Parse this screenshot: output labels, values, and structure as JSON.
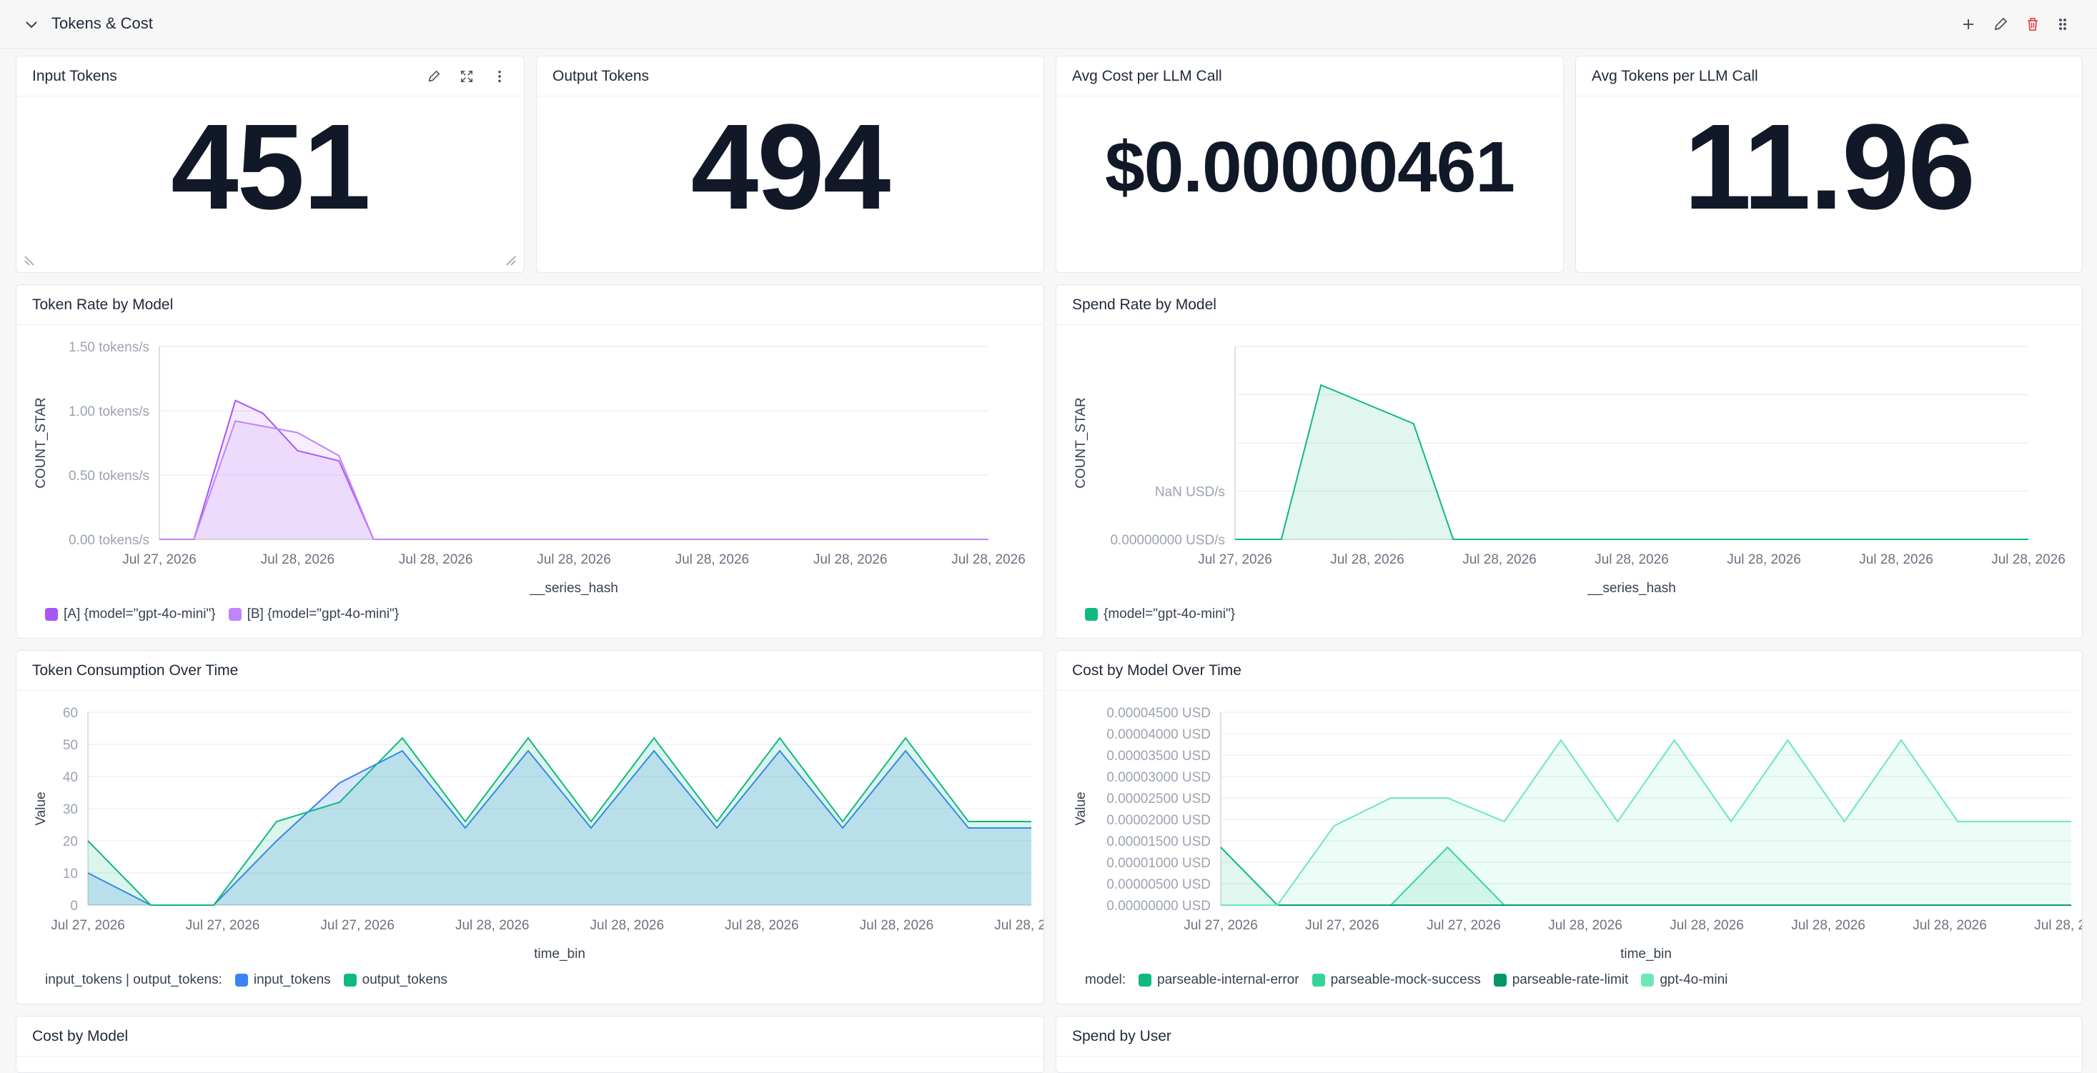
{
  "section": {
    "title": "Tokens & Cost"
  },
  "stats": [
    {
      "title": "Input Tokens",
      "value": "451"
    },
    {
      "title": "Output Tokens",
      "value": "494"
    },
    {
      "title": "Avg Cost per LLM Call",
      "value": "$0.00000461"
    },
    {
      "title": "Avg Tokens per LLM Call",
      "value": "11.96"
    }
  ],
  "colors": {
    "purple_a": "#a855f7",
    "purple_b": "#c084fc",
    "green": "#10b981",
    "blue": "#3b82f6",
    "delete": "#ef4444"
  },
  "icons": {
    "section": [
      "chevron-down-icon",
      "plus-icon",
      "pencil-icon",
      "trash-icon",
      "drag-handle-icon"
    ],
    "card": [
      "pencil-icon",
      "expand-icon",
      "more-vertical-icon"
    ]
  },
  "chart_data": [
    {
      "panel": "Token Rate by Model",
      "type": "area",
      "xlabel": "__series_hash",
      "ylabel": "COUNT_STAR",
      "x_ticks": [
        "Jul 27, 2026",
        "Jul 28, 2026",
        "Jul 28, 2026",
        "Jul 28, 2026",
        "Jul 28, 2026",
        "Jul 28, 2026",
        "Jul 28, 2026"
      ],
      "y_ticks": [
        "0.00 tokens/s",
        "0.50 tokens/s",
        "1.00 tokens/s",
        "1.50 tokens/s"
      ],
      "ylim": [
        0,
        1.5
      ],
      "x": [
        0,
        0.5,
        1.1,
        1.5,
        2.0,
        2.6,
        3.1,
        12
      ],
      "series": [
        {
          "name": "[A] {model=\"gpt-4o-mini\"}",
          "values": [
            0,
            0,
            1.08,
            0.98,
            0.69,
            0.61,
            0,
            0
          ]
        },
        {
          "name": "[B] {model=\"gpt-4o-mini\"}",
          "values": [
            0,
            0,
            0.92,
            0.88,
            0.83,
            0.65,
            0,
            0
          ]
        }
      ],
      "legend_position": "bottom-left"
    },
    {
      "panel": "Spend Rate by Model",
      "type": "area",
      "xlabel": "__series_hash",
      "ylabel": "COUNT_STAR",
      "x_ticks": [
        "Jul 27, 2026",
        "Jul 28, 2026",
        "Jul 28, 2026",
        "Jul 28, 2026",
        "Jul 28, 2026",
        "Jul 28, 2026",
        "Jul 28, 2026"
      ],
      "y_ticks": [
        "0.00000000 USD/s",
        "NaN USD/s"
      ],
      "ylim": [
        0,
        4
      ],
      "x": [
        0,
        0.7,
        1.3,
        2.7,
        3.3,
        12
      ],
      "series": [
        {
          "name": "{model=\"gpt-4o-mini\"}",
          "values": [
            0,
            0,
            3.2,
            2.4,
            0,
            0
          ]
        }
      ],
      "legend_position": "bottom-left"
    },
    {
      "panel": "Token Consumption Over Time",
      "type": "area",
      "xlabel": "time_bin",
      "ylabel": "Value",
      "legend_title": "input_tokens | output_tokens:",
      "x_ticks": [
        "Jul 27, 2026",
        "Jul 27, 2026",
        "Jul 27, 2026",
        "Jul 28, 2026",
        "Jul 28, 2026",
        "Jul 28, 2026",
        "Jul 28, 2026",
        "Jul 28, 2026"
      ],
      "y_ticks": [
        "0",
        "10",
        "20",
        "30",
        "40",
        "50",
        "60"
      ],
      "ylim": [
        0,
        60
      ],
      "x": [
        0,
        1,
        2,
        3,
        4,
        5,
        6,
        7,
        8,
        9,
        10,
        11,
        12,
        13,
        14,
        15
      ],
      "series": [
        {
          "name": "input_tokens",
          "values": [
            10,
            0,
            0,
            20,
            38,
            48,
            24,
            48,
            24,
            48,
            24,
            48,
            24,
            48,
            24,
            24
          ]
        },
        {
          "name": "output_tokens",
          "values": [
            20,
            0,
            0,
            26,
            32,
            52,
            26,
            52,
            26,
            52,
            26,
            52,
            26,
            52,
            26,
            26
          ]
        }
      ],
      "legend_position": "bottom-left"
    },
    {
      "panel": "Cost by Model Over Time",
      "type": "area",
      "xlabel": "time_bin",
      "ylabel": "Value",
      "legend_title": "model:",
      "x_ticks": [
        "Jul 27, 2026",
        "Jul 27, 2026",
        "Jul 27, 2026",
        "Jul 28, 2026",
        "Jul 28, 2026",
        "Jul 28, 2026",
        "Jul 28, 2026",
        "Jul 28, 2026"
      ],
      "y_ticks": [
        "0.00000000 USD",
        "0.00000500 USD",
        "0.00001000 USD",
        "0.00001500 USD",
        "0.00002000 USD",
        "0.00002500 USD",
        "0.00003000 USD",
        "0.00003500 USD",
        "0.00004000 USD",
        "0.00004500 USD"
      ],
      "ylim": [
        0,
        4.5e-05
      ],
      "x": [
        0,
        1,
        2,
        3,
        4,
        5,
        6,
        7,
        8,
        9,
        10,
        11,
        12,
        13,
        14,
        15
      ],
      "series": [
        {
          "name": "parseable-internal-error",
          "values": [
            1.35e-05,
            0,
            0,
            0,
            0,
            0,
            0,
            0,
            0,
            0,
            0,
            0,
            0,
            0,
            0,
            0
          ]
        },
        {
          "name": "parseable-mock-success",
          "values": [
            0,
            0,
            0,
            0,
            1.35e-05,
            0,
            0,
            0,
            0,
            0,
            0,
            0,
            0,
            0,
            0,
            0
          ]
        },
        {
          "name": "parseable-rate-limit",
          "values": [
            0,
            0,
            0,
            0,
            0,
            0,
            0,
            0,
            0,
            0,
            0,
            0,
            0,
            0,
            0,
            0
          ]
        },
        {
          "name": "gpt-4o-mini",
          "values": [
            0,
            0,
            1.85e-05,
            2.5e-05,
            2.5e-05,
            1.95e-05,
            3.85e-05,
            1.95e-05,
            3.85e-05,
            1.95e-05,
            3.85e-05,
            1.95e-05,
            3.85e-05,
            1.95e-05,
            1.95e-05,
            1.95e-05
          ]
        }
      ],
      "legend_colors": [
        "#10b981",
        "#34d399",
        "#059669",
        "#6ee7b7"
      ],
      "legend_position": "bottom-left"
    }
  ],
  "bottom_panels": [
    {
      "title": "Cost by Model"
    },
    {
      "title": "Spend by User"
    }
  ]
}
